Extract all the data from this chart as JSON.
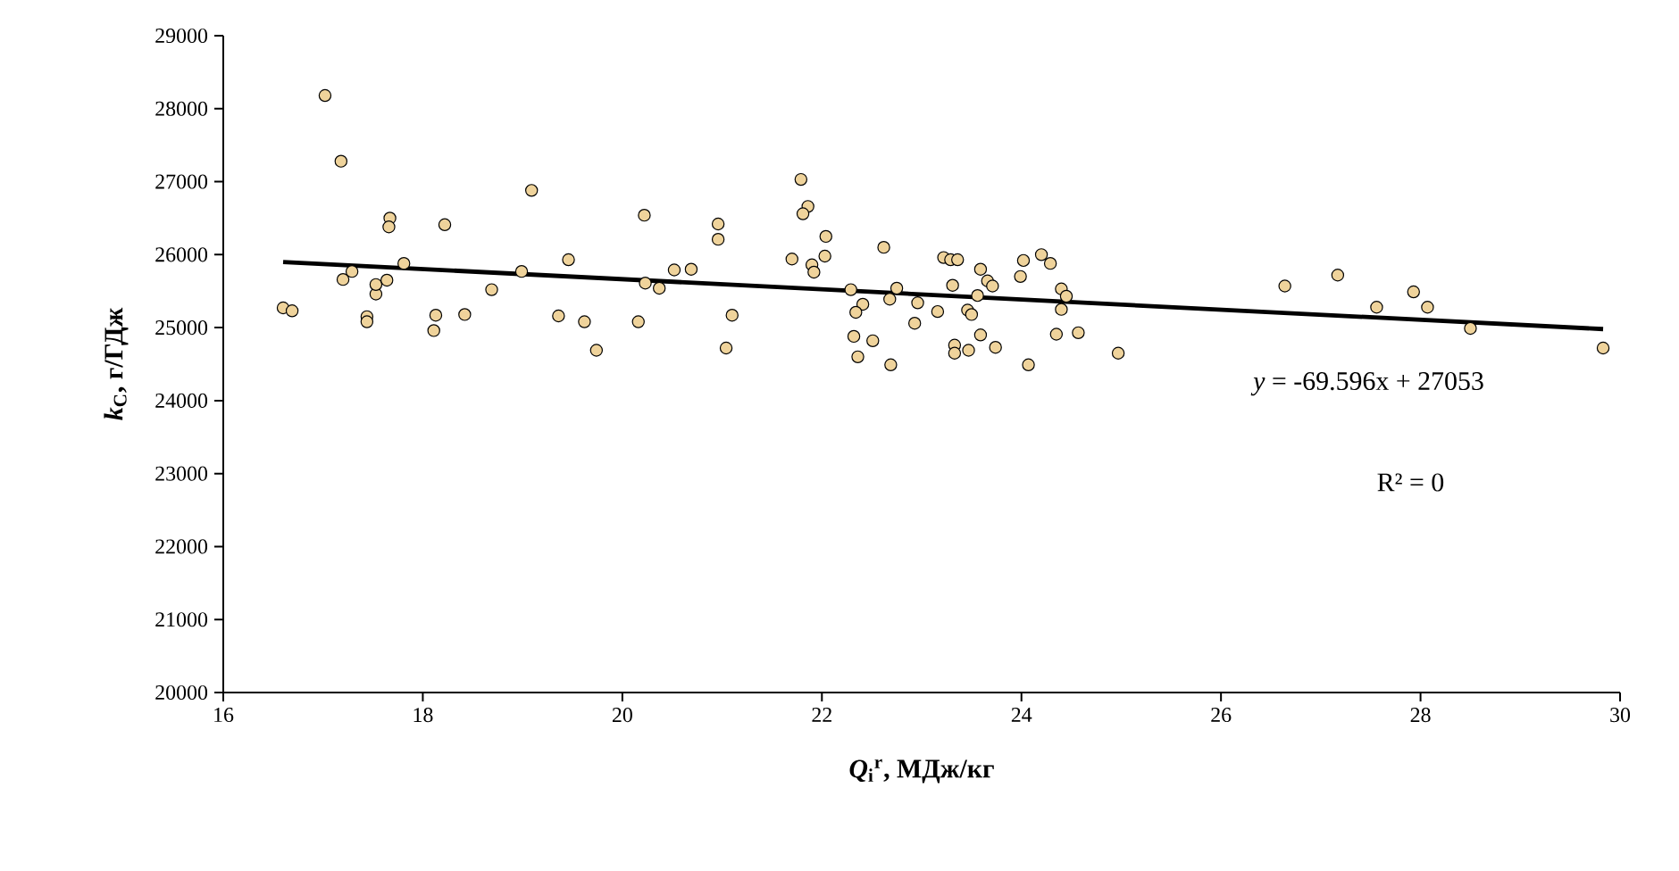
{
  "chart_data": {
    "type": "scatter",
    "xlabel": "*Q*$_{i}$$^{r}$, МДж/кг",
    "ylabel": "*k*$_{C}$,  г/ГДж",
    "annotations": [
      "*y* = -69.596x + 27053",
      "R² = 0"
    ],
    "xlim": [
      16,
      30
    ],
    "ylim": [
      20000,
      29000
    ],
    "xticks": [
      16,
      18,
      20,
      22,
      24,
      26,
      28,
      30
    ],
    "yticks": [
      20000,
      21000,
      22000,
      23000,
      24000,
      25000,
      26000,
      27000,
      28000,
      29000
    ],
    "series": [
      {
        "marker": "circle",
        "color": "#efd39b",
        "x": [
          16.6,
          16.69,
          17.02,
          17.18,
          17.2,
          17.29,
          17.44,
          17.44,
          17.53,
          17.53,
          17.64,
          17.67,
          17.66,
          17.81,
          18.11,
          18.13,
          18.22,
          18.42,
          18.69,
          18.99,
          19.09,
          19.36,
          19.46,
          19.62,
          19.74,
          20.16,
          20.22,
          20.23,
          20.37,
          20.52,
          20.69,
          20.96,
          20.96,
          21.04,
          21.1,
          21.7,
          21.9,
          21.92,
          22.03,
          22.62,
          22.29,
          22.41,
          22.34,
          22.32,
          22.36,
          22.51,
          22.69,
          22.68,
          22.75,
          22.96,
          22.93,
          23.16,
          23.22,
          23.29,
          23.36,
          23.31,
          23.46,
          23.5,
          23.56,
          23.33,
          23.33,
          23.47,
          23.59,
          23.74,
          23.59,
          23.66,
          23.71,
          24.02,
          23.99,
          24.2,
          24.29,
          24.07,
          24.4,
          24.45,
          24.4,
          24.35,
          24.57,
          24.97,
          21.79,
          21.86,
          21.81,
          22.04,
          26.64,
          27.17,
          27.56,
          27.93,
          28.07,
          28.5,
          29.83
        ],
        "values": [
          25270,
          25230,
          28180,
          27280,
          25660,
          25770,
          25150,
          25080,
          25460,
          25590,
          25650,
          26500,
          26380,
          25880,
          24960,
          25170,
          26410,
          25180,
          25520,
          25770,
          26880,
          25160,
          25930,
          25080,
          24690,
          25080,
          26540,
          25610,
          25540,
          25790,
          25800,
          26420,
          26210,
          24720,
          25170,
          25940,
          25860,
          25760,
          25980,
          26100,
          25520,
          25320,
          25210,
          24880,
          24600,
          24820,
          24490,
          25390,
          25540,
          25340,
          25060,
          25220,
          25960,
          25930,
          25930,
          25580,
          25240,
          25180,
          25440,
          24760,
          24650,
          24690,
          24900,
          24730,
          25800,
          25640,
          25570,
          25920,
          25700,
          26000,
          25880,
          24490,
          25530,
          25430,
          25250,
          24910,
          24930,
          24650,
          27030,
          26660,
          26560,
          26250,
          25570,
          25720,
          25280,
          25490,
          25280,
          24990,
          24720
        ]
      },
      {
        "type": "line",
        "marker": "none",
        "color": "#000000",
        "x": [
          16.6,
          29.83
        ],
        "values": [
          25900,
          24980
        ]
      }
    ]
  }
}
